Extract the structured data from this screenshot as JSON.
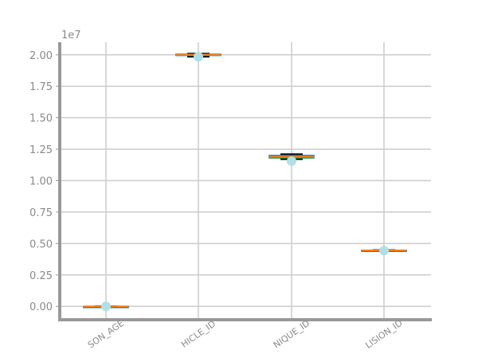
{
  "chart_data": {
    "type": "box",
    "title": "",
    "xlabel": "",
    "ylabel": "",
    "offset_label": "1e7",
    "ylim": [
      -1000000,
      21000000
    ],
    "yticks": [
      0,
      2500000,
      5000000,
      7500000,
      10000000,
      12500000,
      15000000,
      17500000,
      20000000
    ],
    "ytick_labels": [
      "0.00",
      "0.25",
      "0.50",
      "0.75",
      "1.00",
      "1.25",
      "1.50",
      "1.75",
      "2.00"
    ],
    "grid": true,
    "categories": [
      "PERSON_AGE",
      "VEHICLE_ID",
      "UNIQUE_ID",
      "COLLISION_ID"
    ],
    "visible_tick_labels": [
      "SON_AGE",
      "HICLE_ID",
      "NIQUE_ID",
      "LISION_ID"
    ],
    "boxes": [
      {
        "category": "PERSON_AGE",
        "whislo": 0,
        "q1": 0,
        "med": 0,
        "q3": 0,
        "whishi": 0,
        "mean": 0
      },
      {
        "category": "VEHICLE_ID",
        "whislo": 19850000,
        "q1": 19950000,
        "med": 20000000,
        "q3": 20050000,
        "whishi": 20100000,
        "mean": 19850000
      },
      {
        "category": "UNIQUE_ID",
        "whislo": 11700000,
        "q1": 11800000,
        "med": 11900000,
        "q3": 12000000,
        "whishi": 12100000,
        "mean": 11550000
      },
      {
        "category": "COLLISION_ID",
        "whislo": 4400000,
        "q1": 4420000,
        "med": 4450000,
        "q3": 4470000,
        "whishi": 4480000,
        "mean": 4440000
      }
    ],
    "colors": {
      "axis": "#999999",
      "grid": "#cccccc",
      "tick_text": "#8a8a8a",
      "box": "#1f77b4",
      "median": "#ff7f0e",
      "whisker": "#000000",
      "mean_marker": "#b0e0e6",
      "green_line": "#2ca02c"
    }
  }
}
